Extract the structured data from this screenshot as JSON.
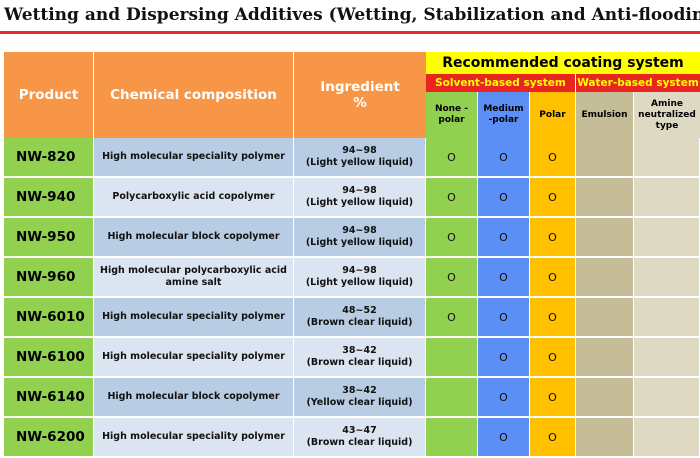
{
  "title": "Wetting and Dispersing Additives (Wetting, Stabilization and Anti-flooding)",
  "headers": {
    "product": "Product",
    "composition": "Chemical composition",
    "ingredient_line1": "Ingredient",
    "ingredient_line2": "%",
    "recommended": "Recommended coating system",
    "solvent": "Solvent-based system",
    "water": "Water-based system",
    "none_polar": "None  -\npolar",
    "medium_polar": "Medium\n-polar",
    "polar": "Polar",
    "emulsion": "Emulsion",
    "amine": "Amine\nneutralized\ntype"
  },
  "rows": [
    {
      "product": "NW-820",
      "composition": "High molecular speciality polymer",
      "range": "94~98",
      "form": "(Light yellow liquid)",
      "none": "O",
      "medium": "O",
      "polar": "O"
    },
    {
      "product": "NW-940",
      "composition": "Polycarboxylic acid copolymer",
      "range": "94~98",
      "form": "(Light yellow liquid)",
      "none": "O",
      "medium": "O",
      "polar": "O"
    },
    {
      "product": "NW-950",
      "composition": "High molecular block copolymer",
      "range": "94~98",
      "form": "(Light yellow liquid)",
      "none": "O",
      "medium": "O",
      "polar": "O"
    },
    {
      "product": "NW-960",
      "composition": "High molecular polycarboxylic acid amine salt",
      "range": "94~98",
      "form": "(Light yellow liquid)",
      "none": "O",
      "medium": "O",
      "polar": "O"
    },
    {
      "product": "NW-6010",
      "composition": "High molecular speciality polymer",
      "range": "48~52",
      "form": "(Brown clear liquid)",
      "none": "O",
      "medium": "O",
      "polar": "O"
    },
    {
      "product": "NW-6100",
      "composition": "High molecular speciality polymer",
      "range": "38~42",
      "form": "(Brown clear liquid)",
      "none": "",
      "medium": "O",
      "polar": "O"
    },
    {
      "product": "NW-6140",
      "composition": "High molecular block copolymer",
      "range": "38~42",
      "form": "(Yellow clear liquid)",
      "none": "",
      "medium": "O",
      "polar": "O"
    },
    {
      "product": "NW-6200",
      "composition": "High molecular speciality polymer",
      "range": "43~47",
      "form": "(Brown clear liquid)",
      "none": "",
      "medium": "O",
      "polar": "O"
    }
  ]
}
